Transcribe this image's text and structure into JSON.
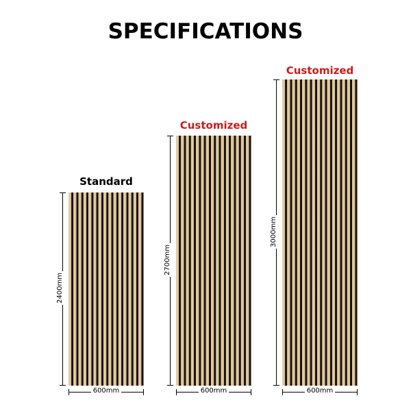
{
  "title": "SPECIFICATIONS",
  "accent_color": "#cc1b1b",
  "panels": [
    {
      "label": "Standard",
      "height": "2400mm",
      "width": "600mm"
    },
    {
      "label": "Customized",
      "height": "2700mm",
      "width": "600mm"
    },
    {
      "label": "Customized",
      "height": "3000mm",
      "width": "600mm"
    }
  ]
}
